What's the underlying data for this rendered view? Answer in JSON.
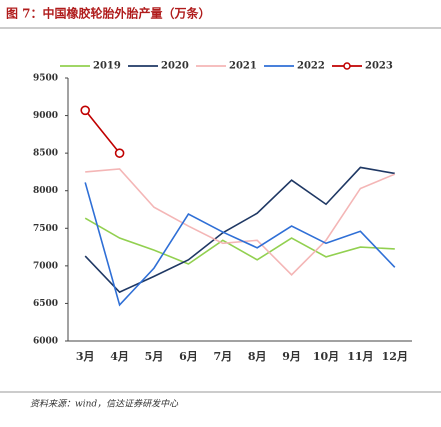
{
  "chart_data": {
    "type": "line",
    "title": "图 7：中国橡胶轮胎外胎产量（万条）",
    "source": "资料来源：wind，信达证券研发中心",
    "categories": [
      "3月",
      "4月",
      "5月",
      "6月",
      "7月",
      "8月",
      "9月",
      "10月",
      "11月",
      "12月"
    ],
    "series": [
      {
        "name": "2019",
        "color": "#92d050",
        "values": [
          7635,
          7370,
          7210,
          7025,
          7340,
          7080,
          7370,
          7120,
          7250,
          7225
        ]
      },
      {
        "name": "2020",
        "color": "#1f3864",
        "values": [
          7130,
          6650,
          6860,
          7080,
          7440,
          7700,
          8140,
          7820,
          8310,
          8230
        ]
      },
      {
        "name": "2021",
        "color": "#f4b6b6",
        "values": [
          8250,
          8290,
          7780,
          7530,
          7300,
          7340,
          6880,
          7340,
          8030,
          8220
        ]
      },
      {
        "name": "2022",
        "color": "#2f6fd6",
        "values": [
          8110,
          6480,
          6970,
          7690,
          7450,
          7240,
          7530,
          7300,
          7460,
          6980
        ]
      },
      {
        "name": "2023",
        "color": "#c00000",
        "marker": "circle",
        "values": [
          9070,
          8500,
          null,
          null,
          null,
          null,
          null,
          null,
          null,
          null
        ]
      }
    ],
    "ylim": [
      6000,
      9500
    ],
    "yticks": [
      6000,
      6500,
      7000,
      7500,
      8000,
      8500,
      9000,
      9500
    ],
    "grid": false
  }
}
